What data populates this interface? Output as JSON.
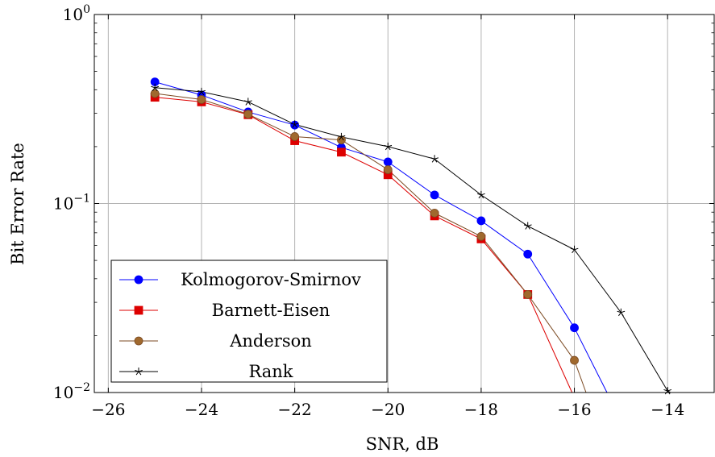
{
  "chart_data": {
    "type": "line",
    "xlabel": "SNR, dB",
    "ylabel": "Bit Error Rate",
    "xlim": [
      -26.3,
      -13.0
    ],
    "ylim": [
      0.01,
      1
    ],
    "yscale": "log",
    "grid": true,
    "legend_position": "bottom-left",
    "x_ticks": [
      -26,
      -24,
      -22,
      -20,
      -18,
      -16,
      -14
    ],
    "x_tick_labels": [
      "−26",
      "−24",
      "−22",
      "−20",
      "−18",
      "−16",
      "−14"
    ],
    "y_ticks": [
      {
        "value": 1,
        "base": "10",
        "exp": "0"
      },
      {
        "value": 0.1,
        "base": "10",
        "exp": "−1"
      },
      {
        "value": 0.01,
        "base": "10",
        "exp": "−2"
      }
    ],
    "series": [
      {
        "name": "Kolmogorov-Smirnov",
        "color": "#0000ff",
        "marker": "circle",
        "x": [
          -25,
          -24,
          -23,
          -22,
          -21,
          -20,
          -19,
          -18,
          -17,
          -16,
          -15.3
        ],
        "y": [
          0.44,
          0.375,
          0.305,
          0.26,
          0.198,
          0.166,
          0.111,
          0.081,
          0.054,
          0.022,
          0.01
        ],
        "marker_count": 10
      },
      {
        "name": "Barnett-Eisen",
        "color": "#dd0000",
        "marker": "square",
        "x": [
          -25,
          -24,
          -23,
          -22,
          -21,
          -20,
          -19,
          -18,
          -17,
          -16.05
        ],
        "y": [
          0.365,
          0.345,
          0.295,
          0.215,
          0.187,
          0.142,
          0.086,
          0.065,
          0.033,
          0.01
        ],
        "marker_count": 9
      },
      {
        "name": "Anderson",
        "color": "#7b4a22",
        "fill": "#a0692e",
        "marker": "circle",
        "x": [
          -25,
          -24,
          -23,
          -22,
          -21,
          -20,
          -19,
          -18,
          -17,
          -16,
          -15.75
        ],
        "y": [
          0.382,
          0.355,
          0.297,
          0.226,
          0.217,
          0.151,
          0.089,
          0.067,
          0.033,
          0.0148,
          0.01
        ],
        "marker_count": 10
      },
      {
        "name": "Rank",
        "color": "#000000",
        "marker": "star",
        "x": [
          -25,
          -24,
          -23,
          -22,
          -21,
          -20,
          -19,
          -18,
          -17,
          -16,
          -15,
          -14,
          -13
        ],
        "y": [
          0.41,
          0.39,
          0.345,
          0.262,
          0.225,
          0.2,
          0.172,
          0.111,
          0.076,
          0.057,
          0.0265,
          0.0102,
          0.0075
        ],
        "marker_count": 12
      }
    ]
  }
}
